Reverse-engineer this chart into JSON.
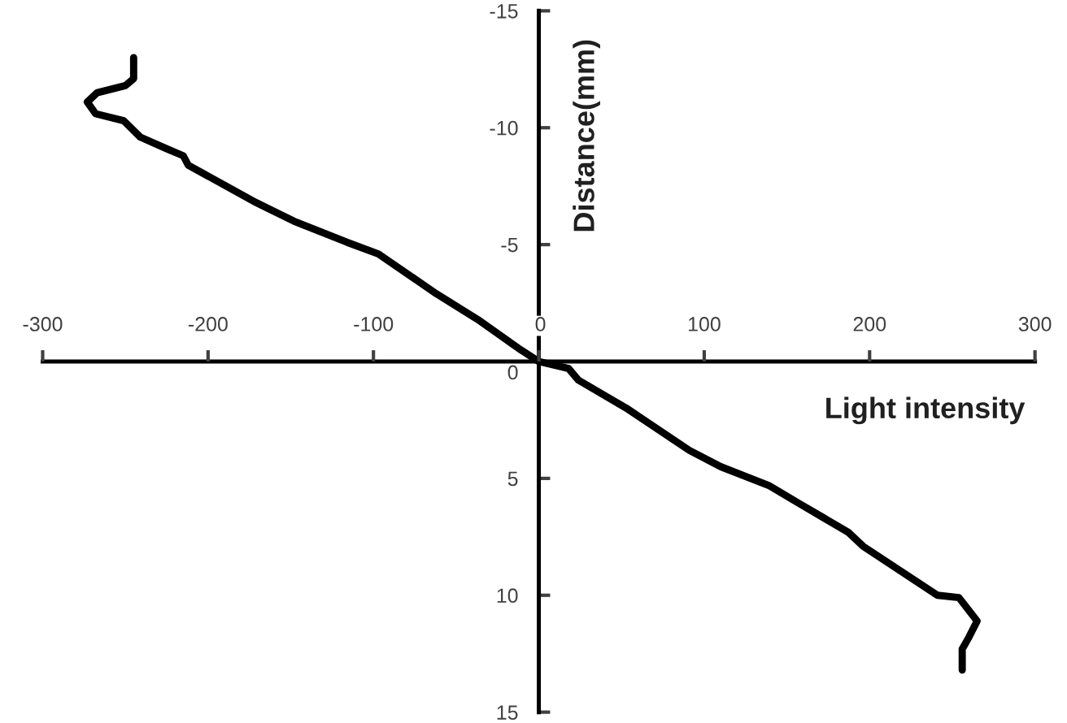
{
  "chart_data": {
    "type": "line",
    "xlabel": "Light intensity",
    "ylabel": "Distance(mm)",
    "xlim": [
      -300,
      300
    ],
    "xticks": [
      -300,
      -200,
      -100,
      0,
      100,
      200,
      300
    ],
    "ylim": [
      15,
      -15
    ],
    "yticks": [
      -15,
      -10,
      -5,
      0,
      5,
      10,
      15
    ],
    "marker": "none",
    "line_style": "solid",
    "series": [
      {
        "color": "#000000",
        "x": [
          -245,
          -245,
          -250,
          -267,
          -273,
          -268,
          -251,
          -241,
          -225,
          -215,
          -212,
          -171,
          -148,
          -116,
          -97,
          -62,
          -37,
          -11,
          0,
          18,
          24,
          53,
          91,
          110,
          139,
          158,
          187,
          196,
          241,
          254,
          265,
          260,
          256,
          256
        ],
        "values": [
          -13.0,
          -12.1,
          -11.8,
          -11.5,
          -11.1,
          -10.6,
          -10.3,
          -9.6,
          -9.1,
          -8.8,
          -8.4,
          -6.8,
          -6.0,
          -5.1,
          -4.6,
          -2.9,
          -1.8,
          -0.5,
          0,
          0.3,
          0.8,
          2.0,
          3.8,
          4.5,
          5.3,
          6.1,
          7.3,
          7.9,
          10.0,
          10.1,
          11.1,
          11.8,
          12.3,
          13.2
        ]
      }
    ]
  }
}
